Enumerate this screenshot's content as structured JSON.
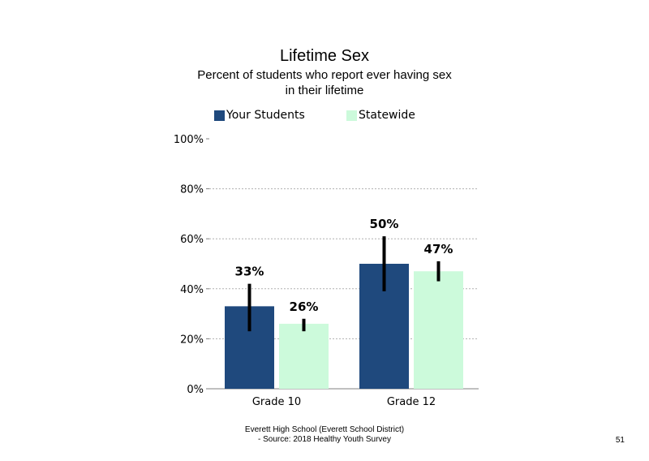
{
  "chart_data": {
    "type": "bar",
    "title": "Lifetime Sex",
    "subtitle_lines": [
      "Percent of students who report ever having sex",
      "in their lifetime"
    ],
    "categories": [
      "Grade 10",
      "Grade 12"
    ],
    "series": [
      {
        "name": "Your Students",
        "color": "#1f497d",
        "values": [
          33,
          50
        ],
        "labels": [
          "33%",
          "50%"
        ],
        "error_low": [
          23,
          39
        ],
        "error_high": [
          42,
          61
        ]
      },
      {
        "name": "Statewide",
        "color": "#ccfadb",
        "values": [
          26,
          47
        ],
        "labels": [
          "26%",
          "47%"
        ],
        "error_low": [
          23,
          43
        ],
        "error_high": [
          28,
          51
        ]
      }
    ],
    "ylim": [
      0,
      100
    ],
    "yticks": [
      0,
      20,
      40,
      60,
      80,
      100
    ],
    "ytick_labels": [
      "0%",
      "20%",
      "40%",
      "60%",
      "80%",
      "100%"
    ],
    "grid": true,
    "legend_position": "top"
  },
  "footer": {
    "line1": "Everett High School (Everett School District)",
    "line2": "- Source: 2018 Healthy Youth Survey"
  },
  "page_number": "51"
}
